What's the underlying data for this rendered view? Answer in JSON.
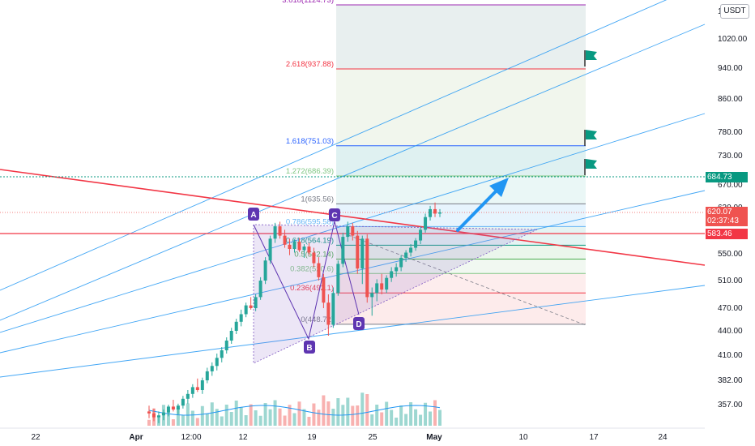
{
  "currency": "USDT",
  "price_tags": [
    {
      "value": "684.73",
      "sub": "",
      "color": "#089981"
    },
    {
      "value": "620.07",
      "sub": "02:37:43",
      "color": "#ef5350"
    },
    {
      "value": "583.46",
      "sub": "",
      "color": "#f23645"
    }
  ],
  "chart_data": {
    "type": "candlestick",
    "y_ticks": [
      "1",
      "1020.00",
      "940.00",
      "860.00",
      "780.00",
      "730.00",
      "670.00",
      "620.00",
      "550.00",
      "510.00",
      "470.00",
      "440.00",
      "410.00",
      "382.00",
      "357.00"
    ],
    "x_ticks": [
      "22",
      "Apr",
      "12:00",
      "12",
      "19",
      "25",
      "May",
      "10",
      "17",
      "24"
    ],
    "fib_levels": [
      {
        "label": "0(448.72)",
        "value": 448.72,
        "color": "#787b86"
      },
      {
        "label": "0.236(492.1)",
        "value": 492.1,
        "color": "#f23645"
      },
      {
        "label": "0.382(520.6)",
        "value": 520.6,
        "color": "#81c784"
      },
      {
        "label": "0.5(542.14)",
        "value": 542.14,
        "color": "#4caf50"
      },
      {
        "label": "0.618(564.19)",
        "value": 564.19,
        "color": "#089981"
      },
      {
        "label": "0.786(595.58)",
        "value": 595.58,
        "color": "#64b5f6"
      },
      {
        "label": "1(635.56)",
        "value": 635.56,
        "color": "#787b86"
      },
      {
        "label": "1.272(686.39)",
        "value": 686.39,
        "color": "#81c784"
      },
      {
        "label": "1.618(751.03)",
        "value": 751.03,
        "color": "#2962ff"
      },
      {
        "label": "2.618(937.88)",
        "value": 937.88,
        "color": "#f23645"
      },
      {
        "label": "3.618(1124.73)",
        "value": 1124.73,
        "color": "#9c27b0"
      }
    ],
    "pattern_points": [
      {
        "label": "A",
        "value": 600
      },
      {
        "label": "B",
        "value": 434
      },
      {
        "label": "C",
        "value": 604
      },
      {
        "label": "D",
        "value": 460
      }
    ],
    "candles": [
      {
        "o": 350,
        "h": 356,
        "l": 343,
        "c": 348
      },
      {
        "o": 348,
        "h": 353,
        "l": 340,
        "c": 344
      },
      {
        "o": 344,
        "h": 350,
        "l": 338,
        "c": 346
      },
      {
        "o": 346,
        "h": 352,
        "l": 341,
        "c": 349
      },
      {
        "o": 349,
        "h": 357,
        "l": 345,
        "c": 355
      },
      {
        "o": 355,
        "h": 362,
        "l": 350,
        "c": 352
      },
      {
        "o": 352,
        "h": 358,
        "l": 347,
        "c": 356
      },
      {
        "o": 356,
        "h": 366,
        "l": 353,
        "c": 363
      },
      {
        "o": 363,
        "h": 372,
        "l": 358,
        "c": 368
      },
      {
        "o": 368,
        "h": 378,
        "l": 364,
        "c": 375
      },
      {
        "o": 375,
        "h": 384,
        "l": 370,
        "c": 372
      },
      {
        "o": 372,
        "h": 385,
        "l": 368,
        "c": 382
      },
      {
        "o": 382,
        "h": 396,
        "l": 379,
        "c": 392
      },
      {
        "o": 392,
        "h": 402,
        "l": 387,
        "c": 398
      },
      {
        "o": 398,
        "h": 412,
        "l": 393,
        "c": 407
      },
      {
        "o": 407,
        "h": 420,
        "l": 402,
        "c": 416
      },
      {
        "o": 416,
        "h": 432,
        "l": 412,
        "c": 428
      },
      {
        "o": 428,
        "h": 444,
        "l": 424,
        "c": 440
      },
      {
        "o": 440,
        "h": 456,
        "l": 436,
        "c": 452
      },
      {
        "o": 452,
        "h": 468,
        "l": 446,
        "c": 462
      },
      {
        "o": 462,
        "h": 478,
        "l": 458,
        "c": 474
      },
      {
        "o": 474,
        "h": 486,
        "l": 468,
        "c": 470
      },
      {
        "o": 470,
        "h": 490,
        "l": 466,
        "c": 486
      },
      {
        "o": 486,
        "h": 515,
        "l": 482,
        "c": 510
      },
      {
        "o": 510,
        "h": 545,
        "l": 505,
        "c": 540
      },
      {
        "o": 540,
        "h": 580,
        "l": 535,
        "c": 575
      },
      {
        "o": 575,
        "h": 602,
        "l": 568,
        "c": 596
      },
      {
        "o": 596,
        "h": 604,
        "l": 575,
        "c": 580
      },
      {
        "o": 580,
        "h": 590,
        "l": 560,
        "c": 565
      },
      {
        "o": 565,
        "h": 575,
        "l": 548,
        "c": 558
      },
      {
        "o": 558,
        "h": 574,
        "l": 552,
        "c": 570
      },
      {
        "o": 570,
        "h": 576,
        "l": 553,
        "c": 556
      },
      {
        "o": 556,
        "h": 566,
        "l": 544,
        "c": 562
      },
      {
        "o": 562,
        "h": 568,
        "l": 548,
        "c": 552
      },
      {
        "o": 552,
        "h": 560,
        "l": 530,
        "c": 536
      },
      {
        "o": 536,
        "h": 545,
        "l": 510,
        "c": 515
      },
      {
        "o": 515,
        "h": 520,
        "l": 470,
        "c": 478
      },
      {
        "o": 478,
        "h": 490,
        "l": 434,
        "c": 448
      },
      {
        "o": 448,
        "h": 500,
        "l": 444,
        "c": 492
      },
      {
        "o": 492,
        "h": 540,
        "l": 488,
        "c": 535
      },
      {
        "o": 535,
        "h": 585,
        "l": 530,
        "c": 578
      },
      {
        "o": 578,
        "h": 604,
        "l": 570,
        "c": 596
      },
      {
        "o": 596,
        "h": 602,
        "l": 572,
        "c": 580
      },
      {
        "o": 580,
        "h": 588,
        "l": 520,
        "c": 528
      },
      {
        "o": 528,
        "h": 580,
        "l": 505,
        "c": 575
      },
      {
        "o": 575,
        "h": 582,
        "l": 478,
        "c": 486
      },
      {
        "o": 486,
        "h": 500,
        "l": 460,
        "c": 492
      },
      {
        "o": 492,
        "h": 512,
        "l": 480,
        "c": 506
      },
      {
        "o": 506,
        "h": 520,
        "l": 490,
        "c": 497
      },
      {
        "o": 497,
        "h": 518,
        "l": 492,
        "c": 514
      },
      {
        "o": 514,
        "h": 530,
        "l": 508,
        "c": 524
      },
      {
        "o": 524,
        "h": 536,
        "l": 516,
        "c": 530
      },
      {
        "o": 530,
        "h": 548,
        "l": 524,
        "c": 544
      },
      {
        "o": 544,
        "h": 556,
        "l": 538,
        "c": 552
      },
      {
        "o": 552,
        "h": 566,
        "l": 546,
        "c": 560
      },
      {
        "o": 560,
        "h": 576,
        "l": 555,
        "c": 572
      },
      {
        "o": 572,
        "h": 596,
        "l": 566,
        "c": 590
      },
      {
        "o": 590,
        "h": 618,
        "l": 585,
        "c": 612
      },
      {
        "o": 612,
        "h": 632,
        "l": 606,
        "c": 626
      },
      {
        "o": 626,
        "h": 638,
        "l": 612,
        "c": 618
      },
      {
        "o": 618,
        "h": 626,
        "l": 612,
        "c": 620
      }
    ]
  }
}
